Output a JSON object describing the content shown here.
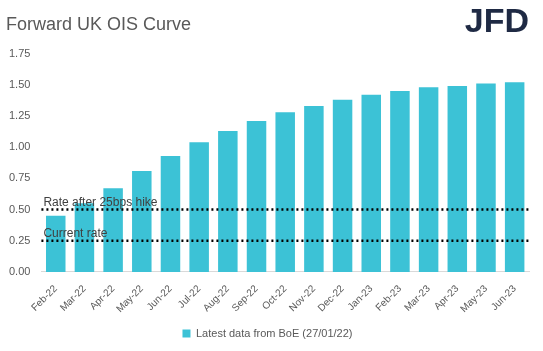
{
  "chart_data": {
    "type": "bar",
    "title": "Forward UK OIS Curve",
    "logo": "JFD",
    "categories": [
      "Feb-22",
      "Mar-22",
      "Apr-22",
      "May-22",
      "Jun-22",
      "Jul-22",
      "Aug-22",
      "Sep-22",
      "Oct-22",
      "Nov-22",
      "Dec-22",
      "Jan-23",
      "Feb-23",
      "Mar-23",
      "Apr-23",
      "May-23",
      "Jun-23"
    ],
    "series": [
      {
        "name": "Latest data from BoE (27/01/22)",
        "color": "#3cc2d6",
        "values": [
          0.45,
          0.55,
          0.67,
          0.81,
          0.93,
          1.04,
          1.13,
          1.21,
          1.28,
          1.33,
          1.38,
          1.42,
          1.45,
          1.48,
          1.49,
          1.51,
          1.52
        ]
      }
    ],
    "annotations": [
      {
        "label": "Rate after 25bps hike",
        "value": 0.5
      },
      {
        "label": "Current rate",
        "value": 0.25
      }
    ],
    "ylim": [
      0,
      1.75
    ],
    "yticks": [
      {
        "value": 0,
        "label": "0.00"
      },
      {
        "value": 0.25,
        "label": "0.25"
      },
      {
        "value": 0.5,
        "label": "0.50"
      },
      {
        "value": 0.75,
        "label": "0.75"
      },
      {
        "value": 1,
        "label": "1.00"
      },
      {
        "value": 1.25,
        "label": "1.25"
      },
      {
        "value": 1.5,
        "label": "1.50"
      },
      {
        "value": 1.75,
        "label": "1.75"
      }
    ],
    "grid": false,
    "legend": "bottom"
  }
}
